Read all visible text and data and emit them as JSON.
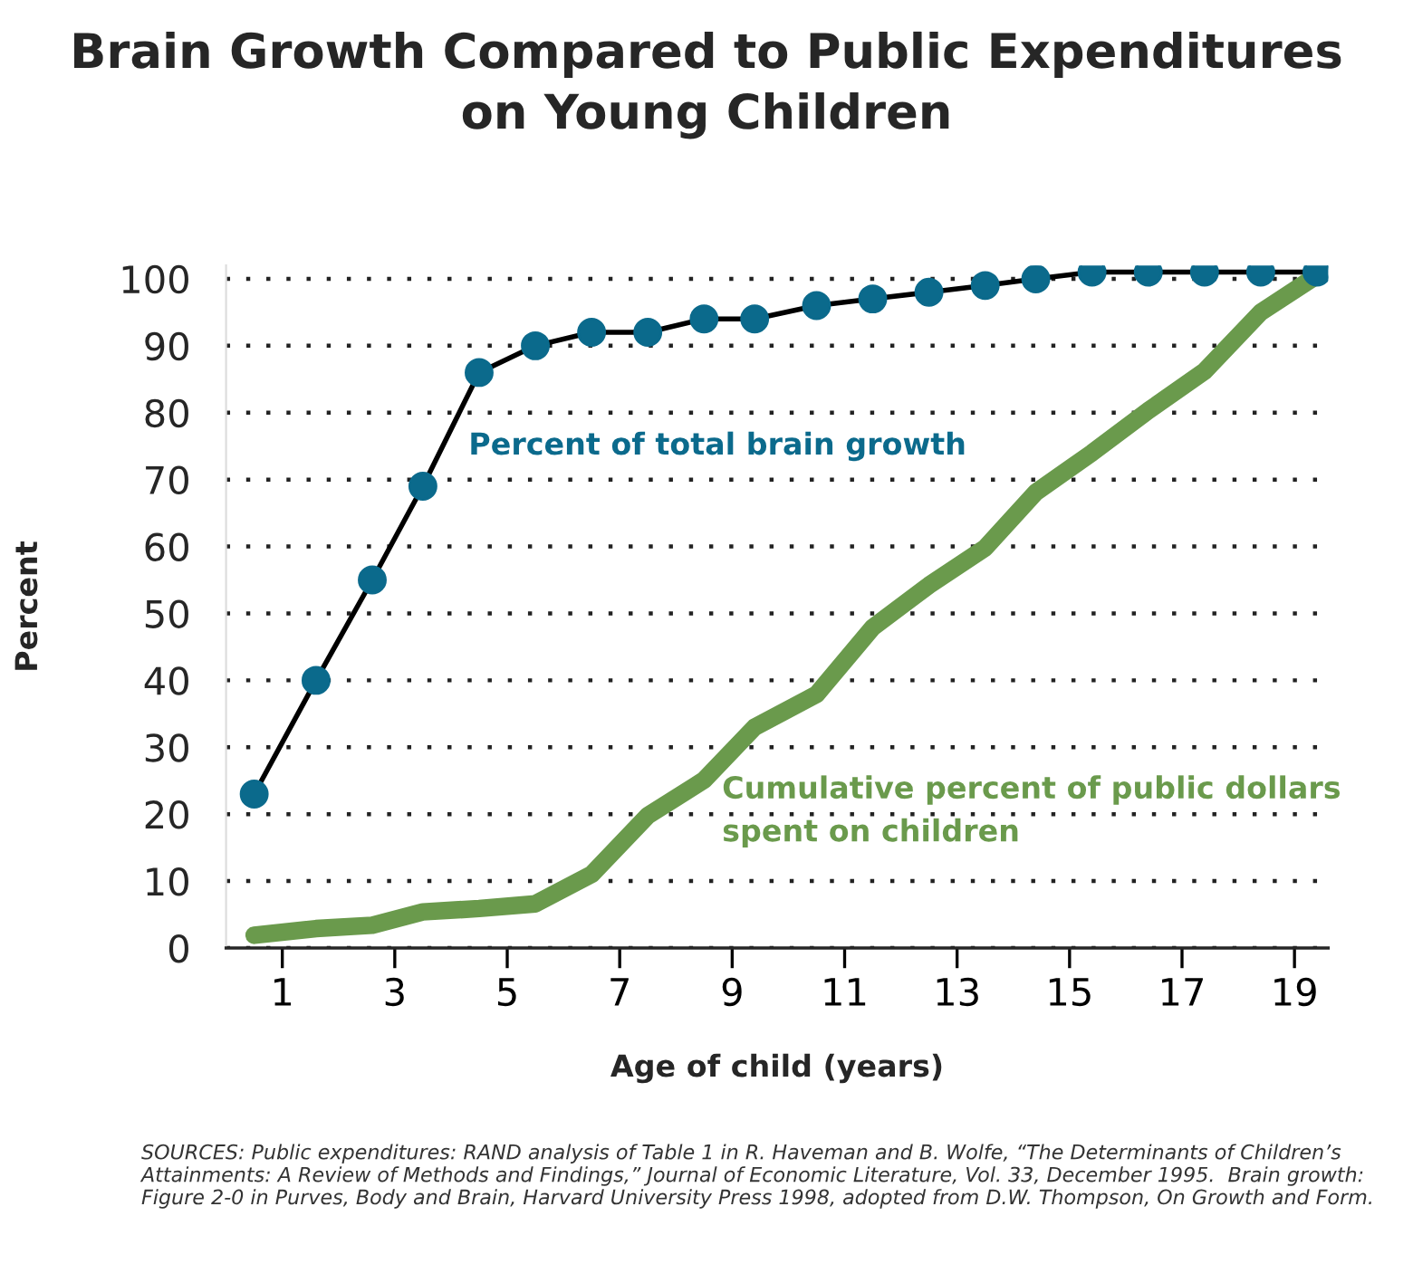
{
  "chart_data": {
    "type": "line",
    "title": "Brain Growth Compared to Public Expenditures\non Young Children",
    "xlabel": "Age of child (years)",
    "ylabel": "Percent",
    "x": [
      0.5,
      1.6,
      2.6,
      3.5,
      4.5,
      5.5,
      6.5,
      7.5,
      8.5,
      9.4,
      10.5,
      11.5,
      12.5,
      13.5,
      14.4,
      15.4,
      16.4,
      17.4,
      18.4,
      19.4
    ],
    "series": [
      {
        "name": "Percent of total brain growth",
        "color": "#0b6a8c",
        "marker": "circle",
        "values": [
          23,
          40,
          55,
          69,
          86,
          90,
          92,
          92,
          94,
          94,
          96,
          97,
          98,
          99,
          100,
          101,
          101,
          101,
          101,
          101
        ]
      },
      {
        "name": "Cumulative percent of public dollars\nspent on children",
        "color": "#6a9a4c",
        "marker": "none",
        "values": [
          1.9,
          2.9,
          3.4,
          5.4,
          5.9,
          6.6,
          11,
          19.8,
          25.1,
          33,
          37.9,
          47.9,
          54.2,
          59.8,
          68.1,
          74,
          80.3,
          86.2,
          95,
          100.5
        ]
      }
    ],
    "xlim": [
      0,
      19.6
    ],
    "xticks": [
      1,
      3,
      5,
      7,
      9,
      11,
      13,
      15,
      17,
      19
    ],
    "ylim": [
      0,
      102
    ],
    "yticks": [
      0,
      10,
      20,
      30,
      40,
      50,
      60,
      70,
      80,
      90,
      100
    ],
    "grid": "y",
    "legend": false,
    "line_style": "solid",
    "annotations": [
      "SOURCES: Public expenditures: RAND analysis of Table 1 in R. Haveman and B. Wolfe, “The Determinants of Children’s Attainments: A Review of Methods and Findings,” Journal of Economic Literature, Vol. 33, December 1995.  Brain growth: Figure 2-0 in Purves, Body and Brain, Harvard University Press 1998, adopted from D.W. Thompson, On Growth and Form."
    ]
  }
}
